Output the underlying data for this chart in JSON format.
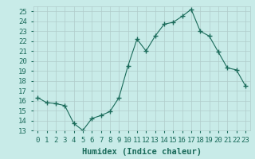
{
  "x": [
    0,
    1,
    2,
    3,
    4,
    5,
    6,
    7,
    8,
    9,
    10,
    11,
    12,
    13,
    14,
    15,
    16,
    17,
    18,
    19,
    20,
    21,
    22,
    23
  ],
  "y": [
    16.3,
    15.8,
    15.7,
    15.5,
    13.7,
    13.0,
    14.2,
    14.5,
    14.9,
    16.3,
    19.5,
    22.2,
    21.0,
    22.5,
    23.7,
    23.9,
    24.5,
    25.2,
    23.0,
    22.5,
    20.9,
    19.3,
    19.1,
    17.5
  ],
  "line_color": "#1a6b5a",
  "marker": "+",
  "marker_size": 4,
  "bg_color": "#c8ebe8",
  "grid_color": "#b0cccb",
  "xlabel": "Humidex (Indice chaleur)",
  "ylim": [
    13,
    25.5
  ],
  "xlim": [
    -0.5,
    23.5
  ],
  "yticks": [
    13,
    14,
    15,
    16,
    17,
    18,
    19,
    20,
    21,
    22,
    23,
    24,
    25
  ],
  "xtick_labels": [
    "0",
    "1",
    "2",
    "3",
    "4",
    "5",
    "6",
    "7",
    "8",
    "9",
    "10",
    "11",
    "12",
    "13",
    "14",
    "15",
    "16",
    "17",
    "18",
    "19",
    "20",
    "21",
    "22",
    "23"
  ],
  "tick_color": "#1a6b5a",
  "label_fontsize": 7.5,
  "tick_fontsize": 6.5
}
